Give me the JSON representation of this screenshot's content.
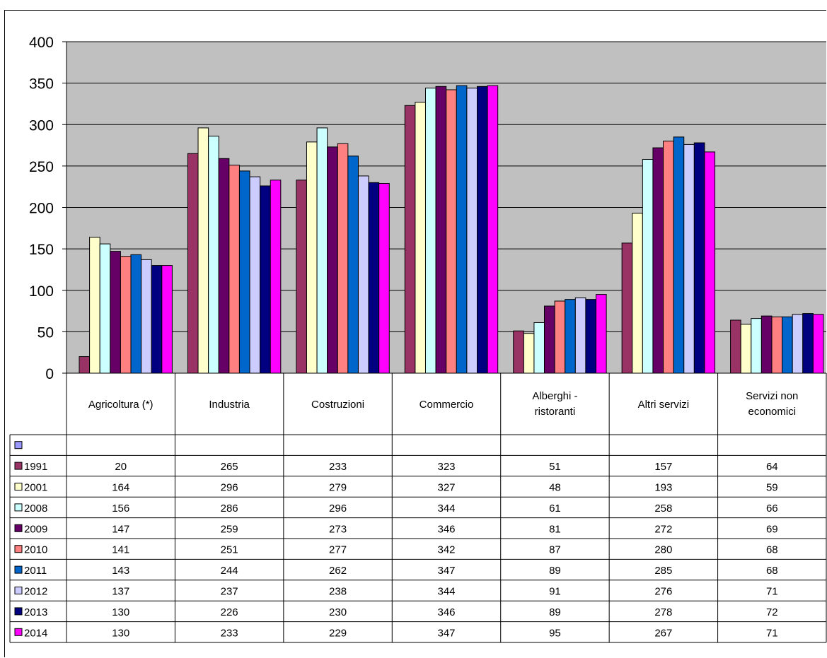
{
  "chart_data": {
    "type": "bar",
    "title": "",
    "xlabel": "",
    "ylabel": "",
    "ylim": [
      0,
      400
    ],
    "yticks": [
      0,
      50,
      100,
      150,
      200,
      250,
      300,
      350,
      400
    ],
    "grid": true,
    "legend": "data-table",
    "categories": [
      [
        "Agricoltura (*)"
      ],
      [
        "Industria"
      ],
      [
        "Costruzioni"
      ],
      [
        "Commercio"
      ],
      [
        "Alberghi -",
        "ristoranti"
      ],
      [
        "Altri servizi"
      ],
      [
        "Servizi non",
        "economici"
      ]
    ],
    "empty_series": {
      "name": "",
      "color": "#9999FF"
    },
    "series": [
      {
        "name": "1991",
        "color": "#993366",
        "values": [
          20,
          265,
          233,
          323,
          51,
          157,
          64
        ]
      },
      {
        "name": "2001",
        "color": "#FFFFCC",
        "values": [
          164,
          296,
          279,
          327,
          48,
          193,
          59
        ]
      },
      {
        "name": "2008",
        "color": "#CCFFFF",
        "values": [
          156,
          286,
          296,
          344,
          61,
          258,
          66
        ]
      },
      {
        "name": "2009",
        "color": "#660066",
        "values": [
          147,
          259,
          273,
          346,
          81,
          272,
          69
        ]
      },
      {
        "name": "2010",
        "color": "#FF8080",
        "values": [
          141,
          251,
          277,
          342,
          87,
          280,
          68
        ]
      },
      {
        "name": "2011",
        "color": "#0066CC",
        "values": [
          143,
          244,
          262,
          347,
          89,
          285,
          68
        ]
      },
      {
        "name": "2012",
        "color": "#CCCCFF",
        "values": [
          137,
          237,
          238,
          344,
          91,
          276,
          71
        ]
      },
      {
        "name": "2013",
        "color": "#000080",
        "values": [
          130,
          226,
          230,
          346,
          89,
          278,
          72
        ]
      },
      {
        "name": "2014",
        "color": "#FF00FF",
        "values": [
          130,
          233,
          229,
          347,
          95,
          267,
          71
        ]
      }
    ],
    "colors": {
      "plot_background": "#C0C0C0",
      "gridline": "#000000"
    }
  }
}
